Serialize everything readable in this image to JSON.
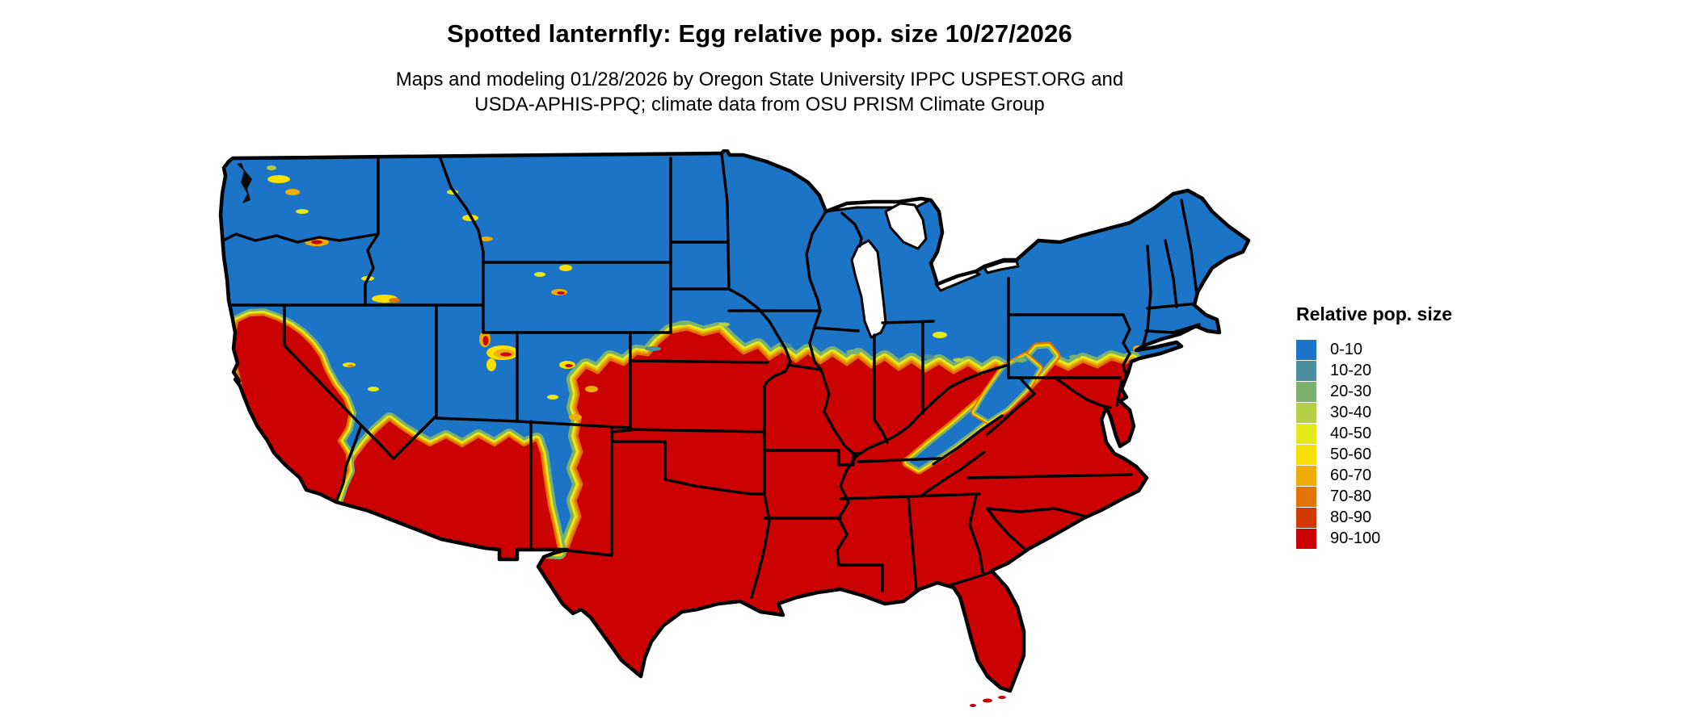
{
  "header": {
    "title": "Spotted lanternfly: Egg relative pop. size 10/27/2026",
    "subtitle_line1": "Maps and modeling 01/28/2026 by Oregon State University IPPC USPEST.ORG and",
    "subtitle_line2": "USDA-APHIS-PPQ; climate data from OSU PRISM Climate Group"
  },
  "legend": {
    "title": "Relative pop. size",
    "items": [
      {
        "label": "0-10",
        "color": "#1C74C6"
      },
      {
        "label": "10-20",
        "color": "#4A8F9C"
      },
      {
        "label": "20-30",
        "color": "#7CB06C"
      },
      {
        "label": "30-40",
        "color": "#B5CF46"
      },
      {
        "label": "40-50",
        "color": "#E4EA18"
      },
      {
        "label": "50-60",
        "color": "#F7DF00"
      },
      {
        "label": "60-70",
        "color": "#EFAC04"
      },
      {
        "label": "70-80",
        "color": "#E17403"
      },
      {
        "label": "80-90",
        "color": "#D23900"
      },
      {
        "label": "90-100",
        "color": "#CC0202"
      }
    ]
  },
  "map": {
    "area": "Contiguous United States",
    "low_value_color": "#1C74C6",
    "high_value_color": "#CC0202",
    "pattern": "Low values (blue) across the northern tier, New England and the western mountains; high values (red) across the South, lower Midwest, mid-Atlantic coastal plain, California valleys and the desert Southwest; narrow yellow-to-orange transition band between them; Appalachian ridge remains blue."
  }
}
